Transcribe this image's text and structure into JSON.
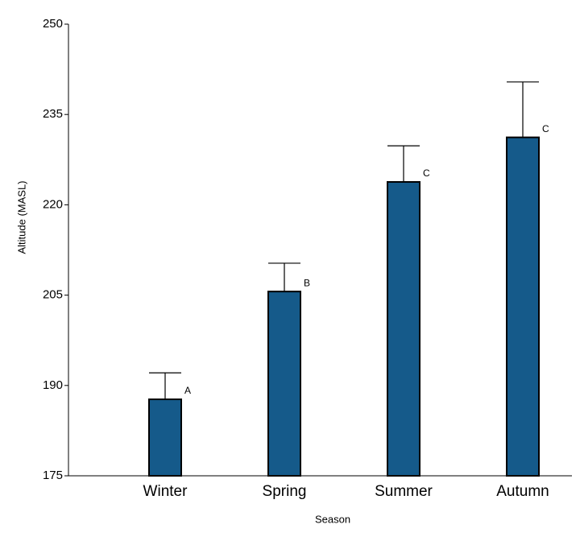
{
  "chart_data": {
    "type": "bar",
    "x_label": "Season",
    "y_label": "Altitude (MASL)",
    "categories": [
      "Winter",
      "Spring",
      "Summer",
      "Autumn"
    ],
    "values": [
      187.7,
      205.6,
      223.8,
      231.2
    ],
    "errors": [
      4.4,
      4.7,
      6.0,
      9.2
    ],
    "annotations": [
      "A",
      "B",
      "C",
      "C"
    ],
    "color": "#155a8a",
    "ylim": [
      175,
      250
    ],
    "yticks": [
      175,
      190,
      205,
      220,
      235,
      250
    ],
    "grid": false
  }
}
